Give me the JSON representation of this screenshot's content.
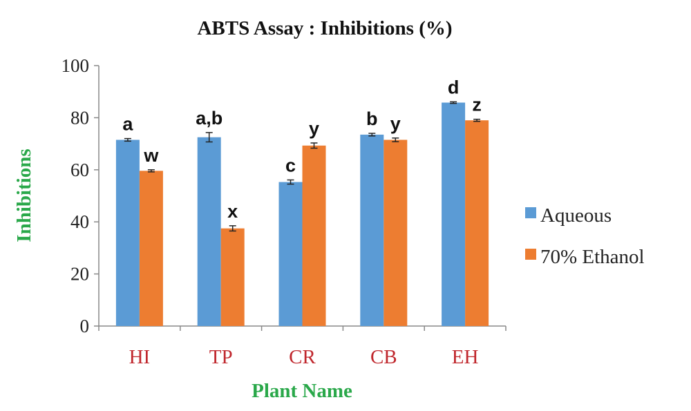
{
  "chart_data": {
    "type": "bar",
    "title": "ABTS Assay : Inhibitions (%)",
    "xlabel": "Plant Name",
    "ylabel": "Inhibitions",
    "categories": [
      "HI",
      "TP",
      "CR",
      "CB",
      "EH"
    ],
    "ylim": [
      0,
      100
    ],
    "yticks": [
      0,
      20,
      40,
      60,
      80,
      100
    ],
    "grid": false,
    "legend_position": "right",
    "series": [
      {
        "name": "Aqueous",
        "color": "#5b9bd5",
        "values": [
          71.5,
          72.5,
          55.3,
          73.5,
          85.8
        ],
        "errors": [
          0.5,
          1.8,
          0.8,
          0.5,
          0.3
        ],
        "letters": [
          "a",
          "a,b",
          "c",
          "b",
          "d"
        ]
      },
      {
        "name": "70% Ethanol",
        "color": "#ed7d31",
        "values": [
          59.6,
          37.5,
          69.3,
          71.5,
          79.0
        ],
        "errors": [
          0.4,
          1.0,
          1.0,
          0.7,
          0.4
        ],
        "letters": [
          "w",
          "x",
          "y",
          "y",
          "z"
        ]
      }
    ],
    "colors": {
      "xtick_text": "#c0272d",
      "axis_label_text": "#2aa84a",
      "axis_line": "#888888"
    }
  }
}
